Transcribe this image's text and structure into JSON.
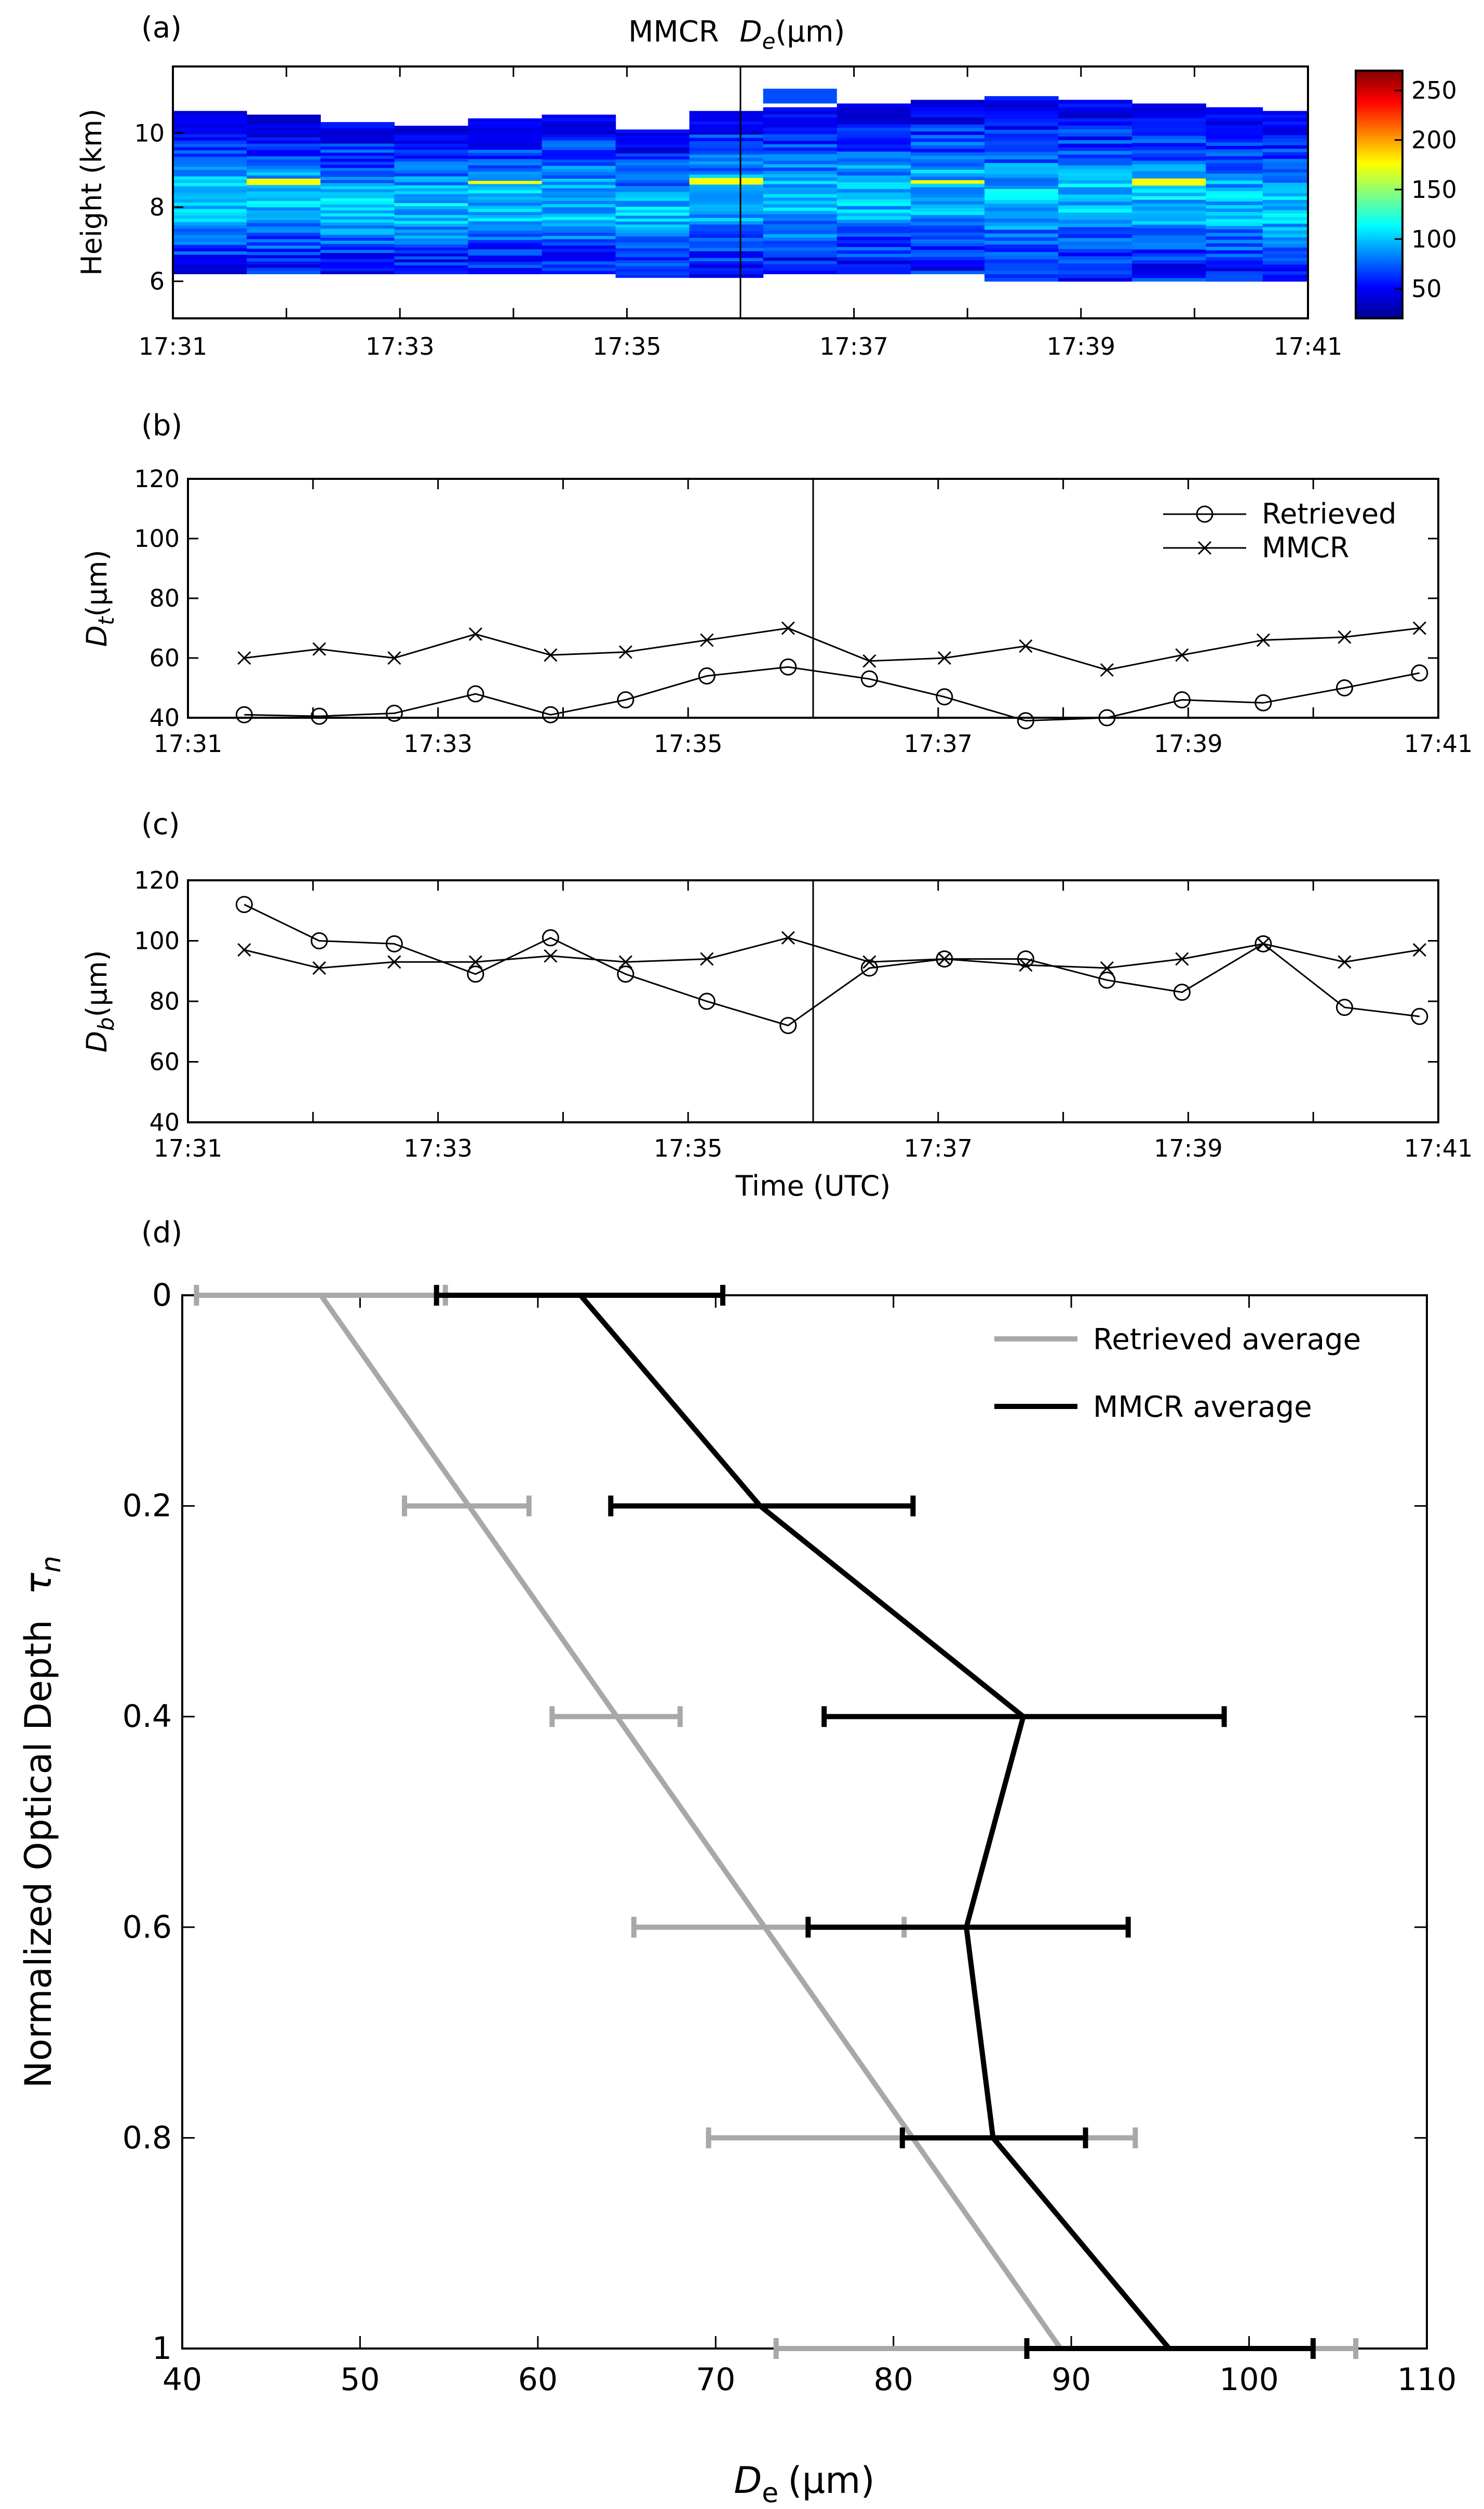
{
  "chart_data": [
    {
      "panel_label": "(a)",
      "type": "heatmap",
      "title_prefix": "MMCR",
      "title_var": "D",
      "title_sub": "e",
      "title_unit": "(μm)",
      "ylabel": "Height (km)",
      "xlabel": "",
      "x_ticks": [
        "17:31",
        "17:33",
        "17:35",
        "17:37",
        "17:39",
        "17:41"
      ],
      "x_tick_minutes": [
        31,
        32,
        33,
        34,
        35,
        36,
        37,
        38,
        39,
        40,
        41
      ],
      "xlim": [
        31,
        41
      ],
      "y_ticks": [
        6,
        8,
        10
      ],
      "ylim": [
        5,
        11.8
      ],
      "marker_line_minute": 36,
      "colorbar": {
        "ticks": [
          50,
          100,
          150,
          200,
          250
        ],
        "range": [
          20,
          270
        ],
        "colormap": "jet"
      },
      "columns": [
        {
          "x0": 31.0,
          "x1": 31.65,
          "base": 6.2,
          "top": 10.6
        },
        {
          "x0": 31.65,
          "x1": 32.3,
          "base": 6.2,
          "top": 10.5
        },
        {
          "x0": 32.3,
          "x1": 32.95,
          "base": 6.2,
          "top": 10.3
        },
        {
          "x0": 32.95,
          "x1": 33.6,
          "base": 6.2,
          "top": 10.2
        },
        {
          "x0": 33.6,
          "x1": 34.25,
          "base": 6.2,
          "top": 10.4
        },
        {
          "x0": 34.25,
          "x1": 34.9,
          "base": 6.2,
          "top": 10.5
        },
        {
          "x0": 34.9,
          "x1": 35.55,
          "base": 6.1,
          "top": 10.1
        },
        {
          "x0": 35.55,
          "x1": 36.2,
          "base": 6.1,
          "top": 10.6
        },
        {
          "x0": 36.2,
          "x1": 36.85,
          "base": 6.2,
          "top": 10.7
        },
        {
          "x0": 36.85,
          "x1": 37.5,
          "base": 6.2,
          "top": 10.8
        },
        {
          "x0": 37.5,
          "x1": 38.15,
          "base": 6.2,
          "top": 10.9
        },
        {
          "x0": 38.15,
          "x1": 38.8,
          "base": 6.0,
          "top": 11.0
        },
        {
          "x0": 38.8,
          "x1": 39.45,
          "base": 6.0,
          "top": 10.9
        },
        {
          "x0": 39.45,
          "x1": 40.1,
          "base": 6.0,
          "top": 10.8
        },
        {
          "x0": 40.1,
          "x1": 40.6,
          "base": 6.0,
          "top": 10.7
        },
        {
          "x0": 40.6,
          "x1": 41.0,
          "base": 6.0,
          "top": 10.6
        }
      ],
      "extra_cell": {
        "x0": 36.2,
        "x1": 36.85,
        "base": 10.8,
        "top": 11.2
      }
    },
    {
      "panel_label": "(b)",
      "type": "line",
      "ylabel_var": "D",
      "ylabel_sub": "t",
      "ylabel_unit": "(μm)",
      "x_ticks": [
        "17:31",
        "17:33",
        "17:35",
        "17:37",
        "17:39",
        "17:41"
      ],
      "x_tick_minutes": [
        31,
        32,
        33,
        34,
        35,
        36,
        37,
        38,
        39,
        40,
        41
      ],
      "xlim": [
        31,
        41
      ],
      "ylim": [
        40,
        120
      ],
      "y_ticks": [
        40,
        60,
        80,
        100,
        120
      ],
      "marker_line_minute": 36,
      "x": [
        31.45,
        32.05,
        32.65,
        33.3,
        33.9,
        34.5,
        35.15,
        35.8,
        36.45,
        37.05,
        37.7,
        38.35,
        38.95,
        39.6,
        40.25,
        40.85
      ],
      "series": [
        {
          "name": "Retrieved",
          "marker": "circle",
          "values": [
            41,
            40.5,
            41.5,
            48,
            41,
            46,
            54,
            57,
            53,
            47,
            39,
            40,
            46,
            45,
            50,
            55
          ]
        },
        {
          "name": "MMCR",
          "marker": "x",
          "values": [
            60,
            63,
            60,
            68,
            61,
            62,
            66,
            70,
            59,
            60,
            64,
            56,
            61,
            66,
            67,
            70
          ]
        }
      ]
    },
    {
      "panel_label": "(c)",
      "type": "line",
      "ylabel_var": "D",
      "ylabel_sub": "b",
      "ylabel_unit": "(μm)",
      "xlabel": "Time (UTC)",
      "x_ticks": [
        "17:31",
        "17:33",
        "17:35",
        "17:37",
        "17:39",
        "17:41"
      ],
      "x_tick_minutes": [
        31,
        32,
        33,
        34,
        35,
        36,
        37,
        38,
        39,
        40,
        41
      ],
      "xlim": [
        31,
        41
      ],
      "ylim": [
        40,
        120
      ],
      "y_ticks": [
        40,
        60,
        80,
        100,
        120
      ],
      "marker_line_minute": 36,
      "x": [
        31.45,
        32.05,
        32.65,
        33.3,
        33.9,
        34.5,
        35.15,
        35.8,
        36.45,
        37.05,
        37.7,
        38.35,
        38.95,
        39.6,
        40.25,
        40.85
      ],
      "series": [
        {
          "name": "Retrieved",
          "marker": "circle",
          "values": [
            112,
            100,
            99,
            89,
            101,
            89,
            80,
            72,
            91,
            94,
            94,
            87,
            83,
            99,
            78,
            75
          ]
        },
        {
          "name": "MMCR",
          "marker": "x",
          "values": [
            97,
            91,
            93,
            93,
            95,
            93,
            94,
            101,
            93,
            94,
            92,
            91,
            94,
            99,
            93,
            97
          ]
        }
      ]
    },
    {
      "panel_label": "(d)",
      "type": "line",
      "xlabel_var": "D",
      "xlabel_sub": "e",
      "xlabel_unit": "(μm)",
      "ylabel_text": "Normalized Optical Depth",
      "ylabel_sym": "τ",
      "ylabel_sym_sub": "n",
      "xlim": [
        40,
        110
      ],
      "x_ticks": [
        40,
        50,
        60,
        70,
        80,
        90,
        100,
        110
      ],
      "ylim": [
        0,
        1
      ],
      "y_ticks": [
        "0",
        "0.2",
        "0.4",
        "0.6",
        "0.8",
        "1"
      ],
      "y_tick_values": [
        0,
        0.2,
        0.4,
        0.6,
        0.8,
        1
      ],
      "series": [
        {
          "name": "Retrieved average",
          "color": "#a8a8a8",
          "line": {
            "x": [
              47.8,
              89.4
            ],
            "y": [
              0,
              1
            ]
          },
          "errorbars": [
            {
              "y": 0,
              "lo": 40.8,
              "hi": 54.8
            },
            {
              "y": 0.2,
              "lo": 52.5,
              "hi": 59.5
            },
            {
              "y": 0.4,
              "lo": 60.8,
              "hi": 68.0
            },
            {
              "y": 0.6,
              "lo": 65.4,
              "hi": 80.6
            },
            {
              "y": 0.8,
              "lo": 69.6,
              "hi": 93.6
            },
            {
              "y": 1,
              "lo": 73.4,
              "hi": 106.0
            }
          ]
        },
        {
          "name": "MMCR average",
          "color": "#000000",
          "line": {
            "x": [
              62.4,
              72.5,
              87.3,
              84.1,
              85.6,
              95.5
            ],
            "y": [
              0,
              0.2,
              0.4,
              0.6,
              0.8,
              1
            ]
          },
          "errorbars": [
            {
              "y": 0,
              "lo": 54.3,
              "hi": 70.4
            },
            {
              "y": 0.2,
              "lo": 64.1,
              "hi": 81.1
            },
            {
              "y": 0.4,
              "lo": 76.1,
              "hi": 98.6
            },
            {
              "y": 0.6,
              "lo": 75.2,
              "hi": 93.2
            },
            {
              "y": 0.8,
              "lo": 80.5,
              "hi": 90.8
            },
            {
              "y": 1,
              "lo": 87.5,
              "hi": 103.6
            }
          ]
        }
      ]
    }
  ]
}
